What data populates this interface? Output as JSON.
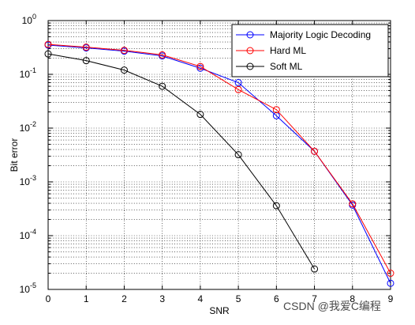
{
  "chart_data": {
    "type": "line",
    "title": "",
    "xlabel": "SNR",
    "ylabel": "Bit error",
    "xlim": [
      0,
      9
    ],
    "ylim": [
      1e-05,
      1
    ],
    "yscale": "log",
    "grid": true,
    "legend_position": "top-right",
    "x": [
      0,
      1,
      2,
      3,
      4,
      5,
      6,
      7,
      8,
      9
    ],
    "x_ticks": [
      "0",
      "1",
      "2",
      "3",
      "4",
      "5",
      "6",
      "7",
      "8",
      "9"
    ],
    "y_ticks": [
      {
        "base": "10",
        "exp": "0"
      },
      {
        "base": "10",
        "exp": "-1"
      },
      {
        "base": "10",
        "exp": "-2"
      },
      {
        "base": "10",
        "exp": "-3"
      },
      {
        "base": "10",
        "exp": "-4"
      },
      {
        "base": "10",
        "exp": "-5"
      }
    ],
    "series": [
      {
        "name": "Majority Logic Decoding",
        "color": "#0000ff",
        "x": [
          0,
          1,
          2,
          3,
          4,
          5,
          6,
          7,
          8,
          9
        ],
        "values": [
          0.35,
          0.31,
          0.27,
          0.22,
          0.13,
          0.07,
          0.017,
          0.0037,
          0.00037,
          1.3e-05
        ]
      },
      {
        "name": "Hard ML",
        "color": "#ff0000",
        "x": [
          0,
          1,
          2,
          3,
          4,
          5,
          6,
          7,
          8,
          9
        ],
        "values": [
          0.36,
          0.32,
          0.28,
          0.23,
          0.14,
          0.052,
          0.022,
          0.0037,
          0.00039,
          2e-05
        ]
      },
      {
        "name": "Soft ML",
        "color": "#000000",
        "x": [
          0,
          1,
          2,
          3,
          4,
          5,
          6,
          7
        ],
        "values": [
          0.24,
          0.18,
          0.12,
          0.06,
          0.018,
          0.0032,
          0.00036,
          2.4e-05
        ]
      }
    ]
  },
  "watermark": "CSDN @我爱C编程"
}
